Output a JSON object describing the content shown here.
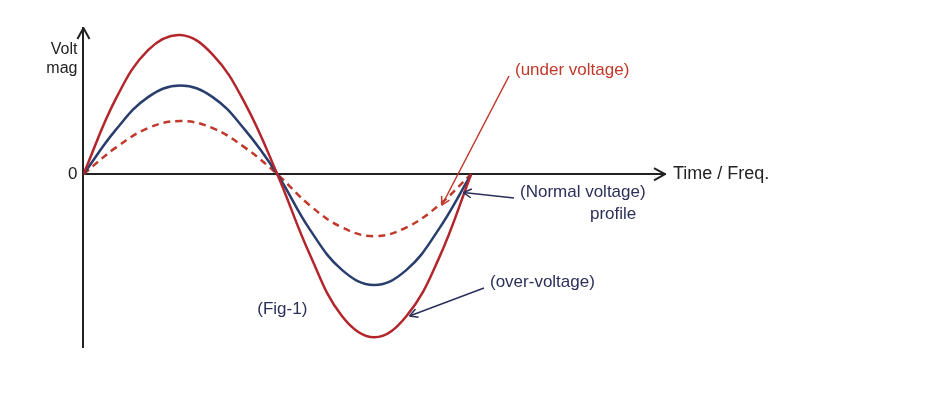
{
  "chart_data": {
    "type": "line",
    "x_label": "Time / Freq.",
    "y_label": "Volt mag",
    "x": [
      0,
      30,
      60,
      90,
      120,
      150,
      180,
      210,
      240,
      270,
      300,
      330,
      360
    ],
    "series": [
      {
        "name": "(over-voltage)",
        "color": "#b3262b",
        "line_style": "solid",
        "values": [
          0,
          0.85,
          1.4,
          1.57,
          1.35,
          0.8,
          0,
          -0.9,
          -1.6,
          -1.84,
          -1.6,
          -0.95,
          0
        ]
      },
      {
        "name": "(Normal voltage) profile",
        "color": "#2a3e6e",
        "line_style": "solid",
        "values": [
          0,
          0.5,
          0.87,
          1,
          0.87,
          0.5,
          0,
          -0.62,
          -1.08,
          -1.25,
          -1.08,
          -0.62,
          0
        ]
      },
      {
        "name": "(under voltage)",
        "color": "#c0392b",
        "line_style": "dashed",
        "values": [
          0,
          0.3,
          0.52,
          0.6,
          0.52,
          0.3,
          0,
          -0.35,
          -0.6,
          -0.7,
          -0.6,
          -0.35,
          0
        ]
      }
    ],
    "annotations": [
      "(Fig-1)"
    ],
    "xlim": [
      0,
      540
    ],
    "ylim": [
      -1.95,
      1.65
    ],
    "yticks": [
      0
    ],
    "tick_labels": "y",
    "grid": false
  }
}
